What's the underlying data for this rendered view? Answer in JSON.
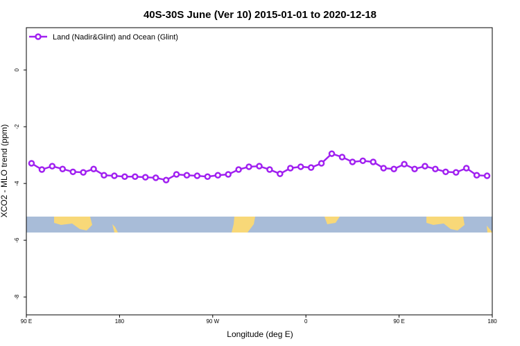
{
  "chart_data": {
    "type": "line",
    "title": "40S-30S June (Ver 10)   2015-01-01 to 2020-12-18",
    "xlabel": "Longitude (deg E)",
    "ylabel": "XCO2 - MLO trend (ppm)",
    "x": [
      95,
      105,
      115,
      125,
      135,
      145,
      155,
      165,
      175,
      185,
      195,
      205,
      215,
      225,
      235,
      245,
      255,
      265,
      275,
      285,
      295,
      305,
      315,
      325,
      335,
      345,
      355,
      365,
      375,
      385,
      395,
      405,
      415,
      425,
      435,
      445,
      455,
      465,
      475,
      485,
      495,
      505,
      515,
      525,
      535
    ],
    "series": [
      {
        "name": "Land (Nadir&Glint) and Ocean (Glint)",
        "color": "#a020f0",
        "values": [
          -3.29,
          -3.51,
          -3.39,
          -3.49,
          -3.59,
          -3.61,
          -3.49,
          -3.71,
          -3.73,
          -3.76,
          -3.76,
          -3.78,
          -3.8,
          -3.88,
          -3.68,
          -3.71,
          -3.73,
          -3.76,
          -3.71,
          -3.68,
          -3.51,
          -3.41,
          -3.39,
          -3.51,
          -3.66,
          -3.46,
          -3.41,
          -3.44,
          -3.29,
          -2.95,
          -3.07,
          -3.24,
          -3.2,
          -3.24,
          -3.46,
          -3.49,
          -3.32,
          -3.49,
          -3.39,
          -3.49,
          -3.59,
          -3.61,
          -3.46,
          -3.71,
          -3.73
        ]
      }
    ],
    "xlim": [
      90,
      540
    ],
    "xticks": [
      {
        "value": 90,
        "label": "90 E"
      },
      180,
      {
        "value": 270,
        "label": "90 W"
      },
      {
        "value": 360,
        "label": "0"
      },
      {
        "value": 450,
        "label": "90 E"
      },
      {
        "value": 540,
        "label": "180"
      }
    ],
    "ylim": [
      -8.63,
      1.49
    ],
    "yticks": [
      0,
      -2,
      -4,
      -6,
      -8
    ],
    "legend": "top-left"
  }
}
